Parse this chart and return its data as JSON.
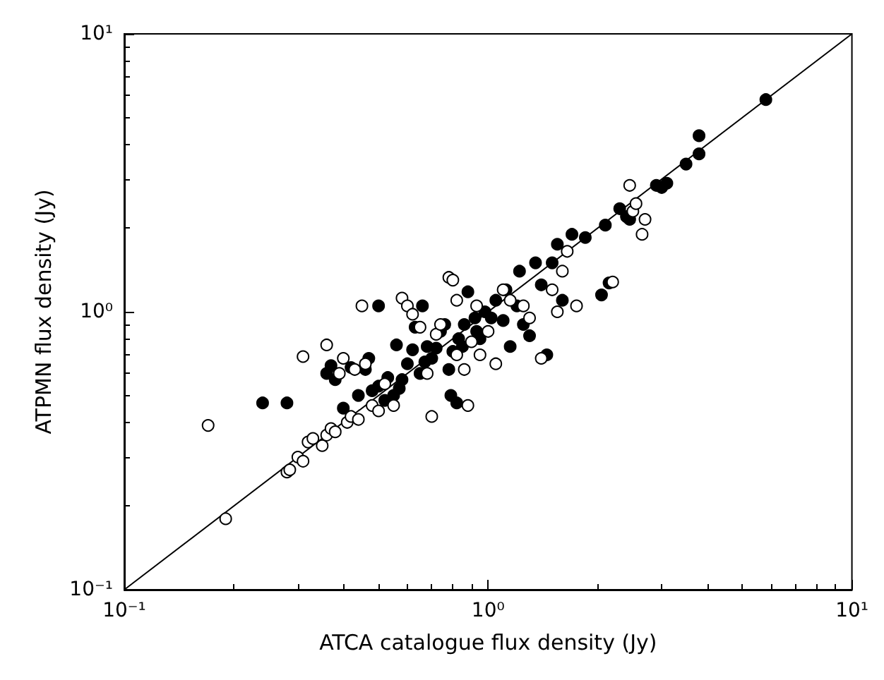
{
  "chart_data": {
    "type": "scatter",
    "xlabel": "ATCA catalogue flux density (Jy)",
    "ylabel": "ATPMN flux density (Jy)",
    "log": "xy",
    "grid": false,
    "marker": "circle",
    "xlim": [
      0.1,
      10
    ],
    "ylim": [
      0.1,
      10
    ],
    "xticks": [
      {
        "value": 0.1,
        "label": "10⁻¹"
      },
      {
        "value": 1,
        "label": "10⁰"
      },
      {
        "value": 10,
        "label": "10¹"
      }
    ],
    "yticks": [
      {
        "value": 0.1,
        "label": "10⁻¹"
      },
      {
        "value": 1,
        "label": "10⁰"
      },
      {
        "value": 10,
        "label": "10¹"
      }
    ],
    "series": [
      {
        "color": "#000000",
        "x": [
          0.24,
          0.28,
          0.36,
          0.38,
          0.37,
          0.4,
          0.44,
          0.42,
          0.46,
          0.47,
          0.48,
          0.5,
          0.5,
          0.52,
          0.53,
          0.55,
          0.57,
          0.56,
          0.58,
          0.6,
          0.62,
          0.63,
          0.65,
          0.67,
          0.68,
          0.66,
          0.7,
          0.72,
          0.74,
          0.76,
          0.78,
          0.79,
          0.82,
          0.8,
          0.83,
          0.85,
          0.86,
          0.88,
          0.92,
          0.93,
          0.95,
          0.98,
          1.02,
          1.05,
          1.1,
          1.12,
          1.15,
          1.2,
          1.22,
          1.25,
          1.3,
          1.35,
          1.4,
          1.45,
          1.5,
          1.55,
          1.6,
          1.7,
          1.85,
          2.05,
          2.15,
          2.1,
          2.3,
          2.4,
          2.45,
          2.9,
          3.0,
          3.1,
          3.5,
          3.8,
          3.8,
          5.8
        ],
        "values": [
          0.47,
          0.47,
          0.6,
          0.57,
          0.64,
          0.45,
          0.5,
          0.63,
          0.62,
          0.68,
          0.52,
          0.54,
          1.05,
          0.48,
          0.58,
          0.5,
          0.53,
          0.76,
          0.57,
          0.65,
          0.73,
          0.88,
          0.6,
          0.66,
          0.75,
          1.05,
          0.68,
          0.74,
          0.85,
          0.9,
          0.62,
          0.5,
          0.47,
          0.72,
          0.8,
          0.75,
          0.9,
          1.18,
          0.95,
          0.85,
          0.8,
          1.0,
          0.95,
          1.1,
          0.93,
          1.2,
          0.75,
          1.05,
          1.4,
          0.9,
          0.82,
          1.5,
          1.25,
          0.7,
          1.5,
          1.75,
          1.1,
          1.9,
          1.85,
          1.15,
          1.27,
          2.05,
          2.35,
          2.2,
          2.15,
          2.85,
          2.8,
          2.9,
          3.4,
          3.7,
          4.3,
          5.8
        ]
      },
      {
        "color": "#ffffff",
        "x": [
          0.17,
          0.19,
          0.28,
          0.285,
          0.3,
          0.31,
          0.32,
          0.33,
          0.31,
          0.35,
          0.36,
          0.37,
          0.38,
          0.36,
          0.39,
          0.4,
          0.41,
          0.42,
          0.43,
          0.44,
          0.45,
          0.46,
          0.48,
          0.5,
          0.52,
          0.55,
          0.58,
          0.6,
          0.62,
          0.65,
          0.68,
          0.7,
          0.72,
          0.74,
          0.78,
          0.8,
          0.82,
          0.82,
          0.86,
          0.88,
          0.9,
          0.93,
          0.95,
          1.0,
          1.05,
          1.1,
          1.15,
          1.25,
          1.3,
          1.4,
          1.5,
          1.55,
          1.6,
          1.65,
          1.75,
          2.2,
          2.45,
          2.5,
          2.55,
          2.65,
          2.7
        ],
        "values": [
          0.39,
          0.18,
          0.265,
          0.27,
          0.3,
          0.29,
          0.34,
          0.35,
          0.69,
          0.33,
          0.36,
          0.38,
          0.37,
          0.76,
          0.6,
          0.68,
          0.4,
          0.42,
          0.62,
          0.41,
          1.05,
          0.65,
          0.46,
          0.44,
          0.55,
          0.46,
          1.12,
          1.05,
          0.98,
          0.88,
          0.6,
          0.42,
          0.83,
          0.9,
          1.33,
          1.3,
          1.1,
          0.7,
          0.62,
          0.46,
          0.78,
          1.05,
          0.7,
          0.85,
          0.65,
          1.2,
          1.1,
          1.05,
          0.95,
          0.68,
          1.2,
          1.0,
          1.4,
          1.65,
          1.05,
          1.28,
          2.85,
          2.3,
          2.45,
          1.9,
          2.15
        ]
      },
      {
        "type": "line",
        "color": "#000000",
        "marker": "none",
        "line_style": "solid",
        "x": [
          0.1,
          10
        ],
        "values": [
          0.1,
          10
        ]
      }
    ]
  }
}
